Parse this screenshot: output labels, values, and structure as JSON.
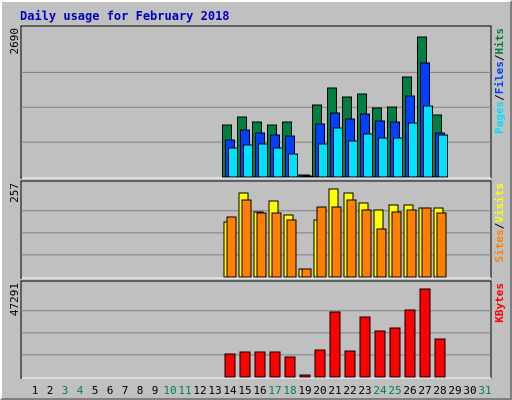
{
  "chart_data": {
    "type": "bar",
    "title": "Daily usage for February 2018",
    "categories": [
      "1",
      "2",
      "3",
      "4",
      "5",
      "6",
      "7",
      "8",
      "9",
      "10",
      "11",
      "12",
      "13",
      "14",
      "15",
      "16",
      "17",
      "18",
      "19",
      "20",
      "21",
      "22",
      "23",
      "24",
      "25",
      "26",
      "27",
      "28",
      "29",
      "30",
      "31"
    ],
    "weekend_days": [
      "3",
      "4",
      "10",
      "11",
      "17",
      "18",
      "24",
      "25",
      "31"
    ],
    "panels": [
      {
        "name": "hits-files-pages",
        "scale_label": "2690",
        "ylim": [
          0,
          2690
        ],
        "right_label": [
          {
            "text": "Pages",
            "color": "#00e0ff"
          },
          {
            "text": "/",
            "color": "#000000"
          },
          {
            "text": "Files",
            "color": "#0040ff"
          },
          {
            "text": "/",
            "color": "#000000"
          },
          {
            "text": "Hits",
            "color": "#008040"
          }
        ],
        "series": [
          {
            "name": "Hits",
            "color": "#008040",
            "values": [
              null,
              null,
              null,
              null,
              null,
              null,
              null,
              null,
              null,
              null,
              null,
              null,
              null,
              1010,
              1160,
              1070,
              1010,
              1070,
              40,
              1380,
              1710,
              1550,
              1610,
              1330,
              1350,
              1920,
              2690,
              1190,
              null,
              null,
              null
            ]
          },
          {
            "name": "Files",
            "color": "#0040ff",
            "values": [
              null,
              null,
              null,
              null,
              null,
              null,
              null,
              null,
              null,
              null,
              null,
              null,
              null,
              720,
              910,
              840,
              810,
              790,
              35,
              1030,
              1240,
              1120,
              1210,
              1080,
              1070,
              1560,
              2200,
              850,
              null,
              null,
              null
            ]
          },
          {
            "name": "Pages",
            "color": "#00e0ff",
            "values": [
              null,
              null,
              null,
              null,
              null,
              null,
              null,
              null,
              null,
              null,
              null,
              null,
              null,
              550,
              620,
              630,
              560,
              450,
              25,
              640,
              950,
              690,
              830,
              750,
              760,
              1050,
              1370,
              810,
              null,
              null,
              null
            ]
          }
        ]
      },
      {
        "name": "visits-sites",
        "scale_label": "257",
        "ylim": [
          0,
          257
        ],
        "right_label": [
          {
            "text": "Sites",
            "color": "#ff8000"
          },
          {
            "text": "/",
            "color": "#000000"
          },
          {
            "text": "Visits",
            "color": "#ffff00"
          }
        ],
        "series": [
          {
            "name": "Visits",
            "color": "#ffff00",
            "values": [
              null,
              null,
              null,
              null,
              null,
              null,
              null,
              null,
              null,
              null,
              null,
              null,
              null,
              160,
              245,
              190,
              220,
              180,
              22,
              165,
              257,
              245,
              215,
              195,
              210,
              210,
              200,
              200,
              null,
              null,
              null
            ]
          },
          {
            "name": "Sites",
            "color": "#ff8000",
            "values": [
              null,
              null,
              null,
              null,
              null,
              null,
              null,
              null,
              null,
              null,
              null,
              null,
              null,
              175,
              225,
              185,
              185,
              165,
              22,
              205,
              205,
              225,
              195,
              140,
              190,
              195,
              200,
              185,
              null,
              null,
              null
            ]
          }
        ]
      },
      {
        "name": "kbytes",
        "scale_label": "47291",
        "ylim": [
          0,
          47291
        ],
        "right_label": [
          {
            "text": "KBytes",
            "color": "#ff0000"
          }
        ],
        "series": [
          {
            "name": "KBytes",
            "color": "#ff0000",
            "values": [
              null,
              null,
              null,
              null,
              null,
              null,
              null,
              null,
              null,
              null,
              null,
              null,
              null,
              12500,
              13500,
              13500,
              13500,
              10600,
              1100,
              14200,
              34800,
              13800,
              32300,
              24500,
              26300,
              35900,
              47291,
              20600,
              null,
              null,
              null
            ]
          }
        ]
      }
    ],
    "grid": true,
    "legend": "right"
  },
  "colors": {
    "title": "#0000c0",
    "background": "#c0c0c0",
    "weekday_label": "#000000",
    "weekend_label": "#00805c",
    "grid": "#808080"
  }
}
